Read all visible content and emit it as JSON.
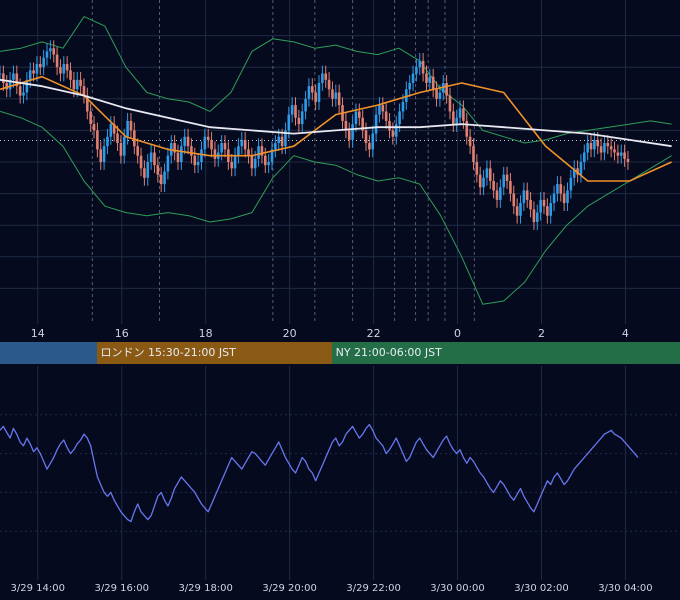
{
  "chart_data": [
    {
      "type": "candlestick",
      "title": "",
      "x_tick_labels": [
        "14",
        "16",
        "18",
        "20",
        "22",
        "0",
        "2",
        "4"
      ],
      "x_tick_hours": [
        14,
        16,
        18,
        20,
        22,
        24,
        26,
        28
      ],
      "x_range_hours": [
        13.1,
        29.3
      ],
      "y_range": [
        0,
        100
      ],
      "reference_line": 56.8,
      "session_lines_hours": [
        15.3,
        16.9,
        19.6,
        20.6,
        21.5,
        22.5,
        23.0,
        23.3,
        23.7,
        24.4
      ],
      "colors": {
        "up": "#2e9be6",
        "down": "#e08070",
        "sma_fast": "#f0922a",
        "sma_slow": "#e8e8f0",
        "bollinger": "#2f9e58",
        "grid": "#1f2a44"
      },
      "series": [
        {
          "type": "ohlc",
          "x_start_hours": 13.1,
          "x_step_hours": 0.08,
          "close": [
            78,
            75,
            73,
            76,
            78,
            74,
            71,
            72,
            76,
            79,
            78,
            81,
            80,
            83,
            85,
            86,
            84,
            80,
            78,
            81,
            79,
            76,
            73,
            76,
            74,
            71,
            66,
            62,
            60,
            54,
            50,
            55,
            58,
            62,
            59,
            56,
            52,
            58,
            63,
            60,
            55,
            52,
            48,
            45,
            50,
            53,
            49,
            46,
            43,
            47,
            52,
            56,
            53,
            50,
            55,
            58,
            55,
            52,
            49,
            50,
            54,
            58,
            57,
            54,
            51,
            53,
            56,
            54,
            50,
            48,
            52,
            55,
            57,
            54,
            52,
            48,
            51,
            55,
            52,
            49,
            50,
            54,
            56,
            58,
            55,
            60,
            65,
            68,
            64,
            62,
            66,
            70,
            74,
            72,
            69,
            75,
            78,
            76,
            73,
            70,
            72,
            68,
            63,
            60,
            57,
            62,
            66,
            64,
            60,
            56,
            54,
            59,
            65,
            68,
            66,
            63,
            60,
            58,
            62,
            66,
            69,
            73,
            75,
            78,
            80,
            82,
            78,
            75,
            77,
            73,
            70,
            72,
            75,
            71,
            66,
            62,
            64,
            67,
            63,
            58,
            55,
            50,
            46,
            42,
            45,
            48,
            44,
            41,
            38,
            42,
            46,
            44,
            40,
            36,
            33,
            37,
            41,
            38,
            35,
            31,
            34,
            38,
            36,
            33,
            37,
            40,
            43,
            40,
            37,
            41,
            45,
            48,
            46,
            50,
            53,
            56,
            54,
            57,
            55,
            53,
            56,
            55,
            54,
            53,
            52,
            53,
            51,
            50
          ],
          "wick": 2.5
        },
        {
          "type": "line",
          "name": "",
          "role": "sma_fast",
          "x_start_hours": 13.1,
          "x_step_hours": 1.0,
          "values": [
            73,
            77,
            71,
            58,
            54,
            52,
            52,
            55,
            65,
            68,
            72,
            75,
            72,
            55,
            44,
            44,
            50
          ]
        },
        {
          "type": "line",
          "name": "",
          "role": "sma_slow",
          "x_start_hours": 13.1,
          "x_step_hours": 1.0,
          "values": [
            76,
            74,
            71,
            67,
            64,
            61,
            60,
            59,
            60,
            61,
            61,
            62,
            61,
            60,
            59,
            57,
            55
          ]
        },
        {
          "type": "line",
          "name": "",
          "role": "bollinger_upper",
          "x_start_hours": 13.1,
          "x_step_hours": 0.5,
          "values": [
            85,
            86,
            88,
            86,
            96,
            93,
            80,
            72,
            70,
            69,
            66,
            72,
            85,
            89,
            88,
            86,
            87,
            85,
            84,
            86,
            82,
            73,
            68,
            60,
            58,
            56,
            57,
            59,
            60,
            61,
            62,
            63,
            62
          ]
        },
        {
          "type": "line",
          "name": "",
          "role": "bollinger_lower",
          "x_start_hours": 13.1,
          "x_step_hours": 0.5,
          "values": [
            66,
            64,
            61,
            55,
            44,
            36,
            34,
            33,
            34,
            33,
            31,
            32,
            34,
            45,
            52,
            50,
            49,
            46,
            44,
            45,
            43,
            33,
            20,
            5,
            6,
            12,
            22,
            30,
            36,
            40,
            44,
            48,
            52
          ]
        }
      ]
    },
    {
      "type": "line",
      "title": "",
      "x_tick_labels": [
        "3/29 14:00",
        "3/29 16:00",
        "3/29 18:00",
        "3/29 20:00",
        "3/29 22:00",
        "3/30 00:00",
        "3/30 02:00",
        "3/30 04:00"
      ],
      "x_tick_hours": [
        14,
        16,
        18,
        20,
        22,
        24,
        26,
        28
      ],
      "x_range_hours": [
        13.1,
        29.3
      ],
      "y_range": [
        0,
        100
      ],
      "colors": {
        "line": "#6677ee",
        "grid": "#1f2a44"
      },
      "series": [
        {
          "name": "",
          "x_start_hours": 13.1,
          "x_step_hours": 0.08,
          "values": [
            72,
            74,
            71,
            68,
            73,
            70,
            66,
            64,
            68,
            65,
            61,
            63,
            60,
            56,
            52,
            55,
            58,
            62,
            65,
            67,
            63,
            60,
            62,
            65,
            67,
            70,
            68,
            64,
            56,
            48,
            44,
            40,
            38,
            40,
            36,
            33,
            30,
            28,
            26,
            25,
            30,
            34,
            30,
            28,
            26,
            28,
            33,
            38,
            40,
            36,
            33,
            37,
            42,
            45,
            48,
            46,
            44,
            42,
            40,
            37,
            34,
            32,
            30,
            34,
            38,
            42,
            46,
            50,
            54,
            58,
            56,
            54,
            52,
            55,
            58,
            61,
            60,
            58,
            56,
            54,
            57,
            60,
            63,
            66,
            62,
            58,
            55,
            52,
            50,
            54,
            58,
            56,
            52,
            50,
            46,
            50,
            54,
            58,
            62,
            66,
            68,
            64,
            66,
            70,
            72,
            74,
            71,
            68,
            70,
            73,
            75,
            72,
            68,
            66,
            64,
            60,
            62,
            65,
            68,
            64,
            60,
            56,
            58,
            62,
            66,
            68,
            65,
            62,
            60,
            58,
            61,
            64,
            67,
            69,
            65,
            62,
            60,
            62,
            58,
            55,
            58,
            56,
            53,
            50,
            48,
            45,
            42,
            40,
            43,
            46,
            44,
            41,
            38,
            36,
            39,
            42,
            38,
            35,
            32,
            30,
            34,
            38,
            42,
            46,
            44,
            48,
            50,
            47,
            44,
            46,
            49,
            52,
            54,
            56,
            58,
            60,
            62,
            64,
            66,
            68,
            70,
            71,
            72,
            70,
            69,
            68,
            66,
            64,
            62,
            60,
            58
          ]
        }
      ]
    },
    {
      "type": "sessions",
      "sessions": [
        {
          "label": "",
          "start_hours": 13.1,
          "end_hours": 15.4,
          "color": "#2b5a8a"
        },
        {
          "label": "ロンドン 15:30-21:00 JST",
          "start_hours": 15.4,
          "end_hours": 21.0,
          "color": "#8a5a14"
        },
        {
          "label": "NY 21:00-06:00 JST",
          "start_hours": 21.0,
          "end_hours": 29.3,
          "color": "#236e46"
        }
      ]
    }
  ]
}
